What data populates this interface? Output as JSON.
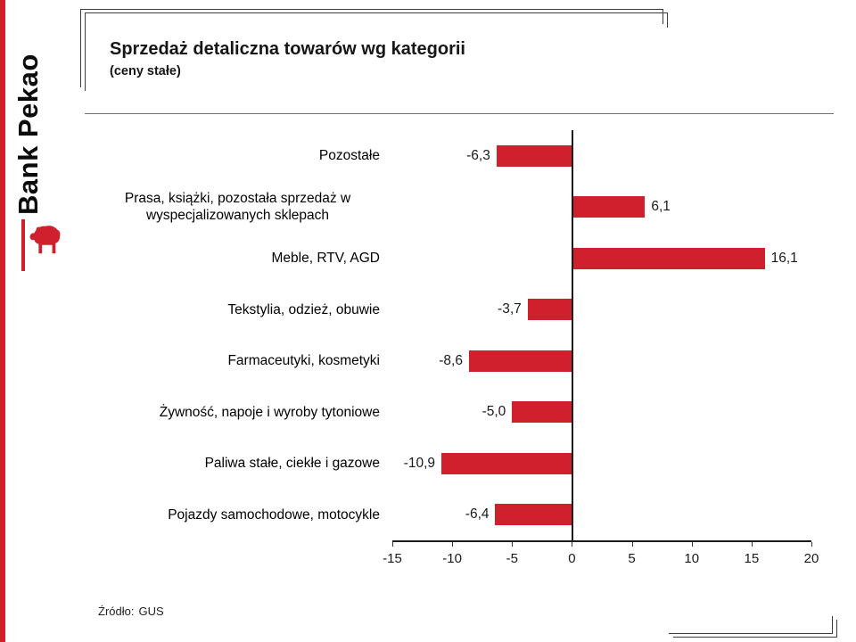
{
  "brand": {
    "name": "Bank Pekao",
    "logo": "bison-icon",
    "accent_color": "#d0202e"
  },
  "header": {
    "title": "Sprzedaż detaliczna towarów wg kategorii",
    "subtitle": "(ceny stałe)"
  },
  "source": {
    "label": "Źródło:",
    "value": "GUS"
  },
  "chart_data": {
    "type": "bar",
    "orientation": "horizontal",
    "title": "Sprzedaż detaliczna towarów wg kategorii (ceny stałe)",
    "categories": [
      "Pozostałe",
      "Prasa, książki, pozostała sprzedaż w wyspecjalizowanych sklepach",
      "Meble, RTV, AGD",
      "Tekstylia, odzież, obuwie",
      "Farmaceutyki, kosmetyki",
      "Żywność, napoje i wyroby tytoniowe",
      "Paliwa stałe, ciekłe i gazowe",
      "Pojazdy samochodowe, motocykle"
    ],
    "values": [
      -6.3,
      6.1,
      16.1,
      -3.7,
      -8.6,
      -5.0,
      -10.9,
      -6.4
    ],
    "value_labels": [
      "-6,3",
      "6,1",
      "16,1",
      "-3,7",
      "-8,6",
      "-5,0",
      "-10,9",
      "-6,4"
    ],
    "xlim": [
      -15,
      20
    ],
    "xticks": [
      -15,
      -10,
      -5,
      0,
      5,
      10,
      15,
      20
    ],
    "xtick_labels": [
      "-15",
      "-10",
      "-5",
      "0",
      "5",
      "10",
      "15",
      "20"
    ],
    "xlabel": "",
    "ylabel": "",
    "bar_color": "#d0202e",
    "grid": false,
    "legend": false
  }
}
